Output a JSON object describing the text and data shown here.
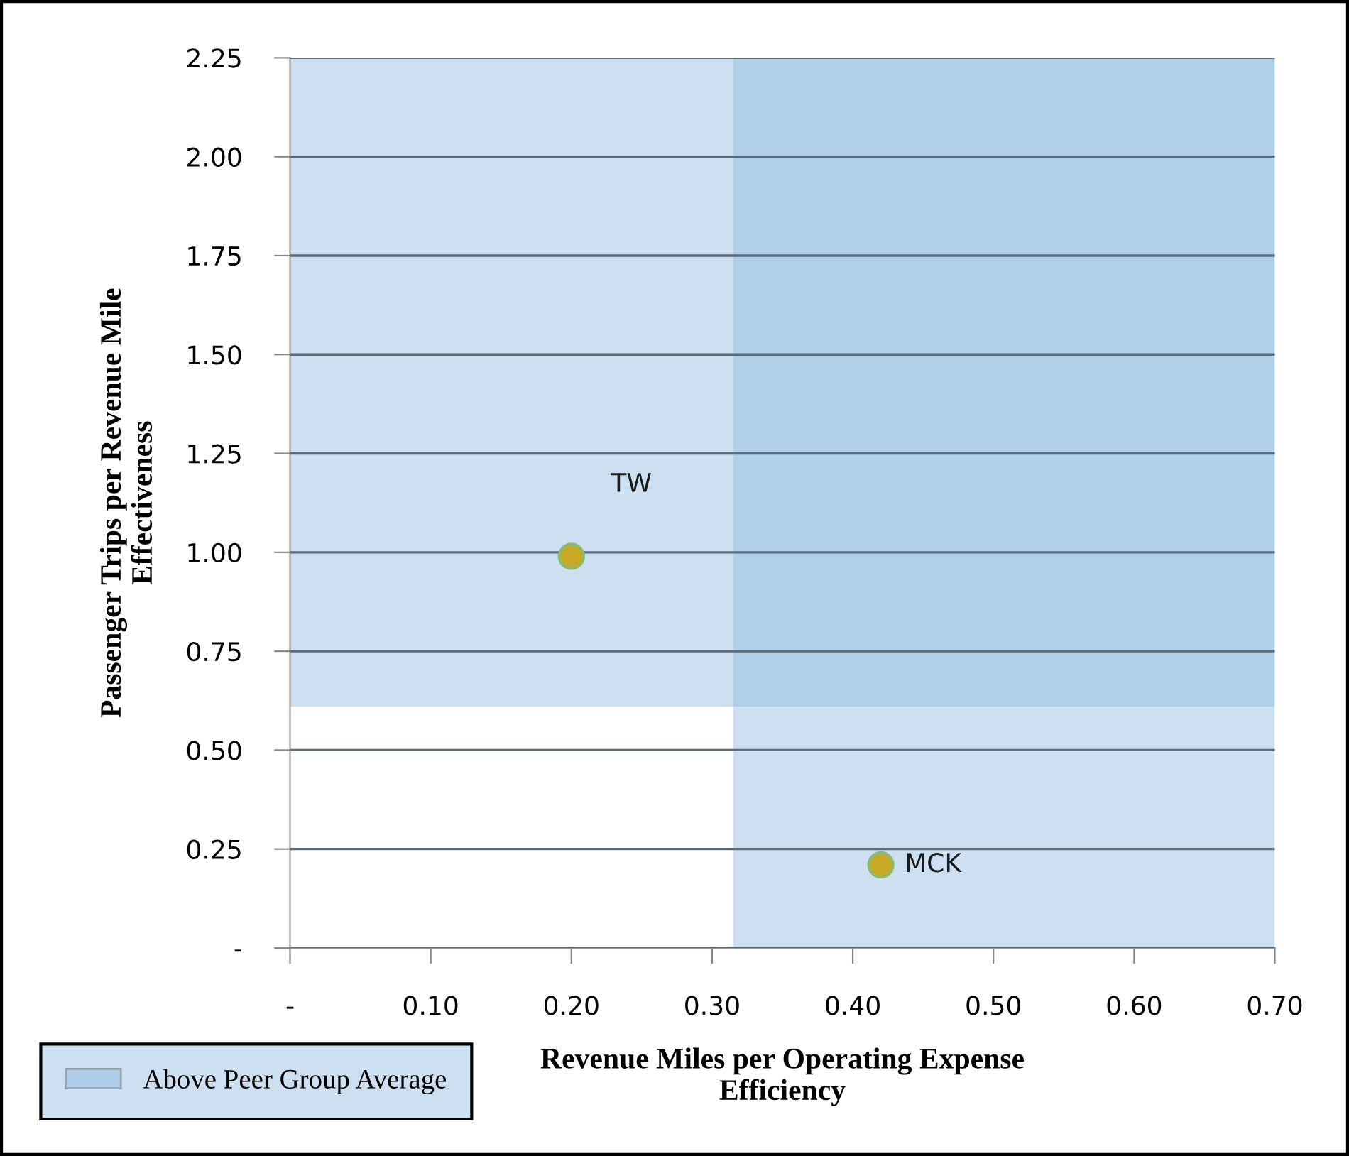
{
  "chart_data": {
    "type": "scatter",
    "xlabel": "Revenue Miles per Operating Expense\nEfficiency",
    "ylabel": "Passenger Trips per Revenue Mile\nEffectiveness",
    "series": [
      {
        "name": "TW",
        "color": "#c9a825",
        "x": [
          0.2
        ],
        "values": [
          0.99
        ]
      },
      {
        "name": "MCK",
        "color": "#c9a825",
        "x": [
          0.42
        ],
        "values": [
          0.21
        ]
      }
    ],
    "xlim": [
      0,
      0.7
    ],
    "xticks": [
      {
        "value": 0,
        "label": "-"
      },
      {
        "value": 0.1,
        "label": "0.10"
      },
      {
        "value": 0.2,
        "label": "0.20"
      },
      {
        "value": 0.3,
        "label": "0.30"
      },
      {
        "value": 0.4,
        "label": "0.40"
      },
      {
        "value": 0.5,
        "label": "0.50"
      },
      {
        "value": 0.6,
        "label": "0.60"
      },
      {
        "value": 0.7,
        "label": "0.70"
      }
    ],
    "ylim": [
      0,
      2.25
    ],
    "yticks": [
      {
        "value": 0,
        "label": "-"
      },
      {
        "value": 0.25,
        "label": "0.25"
      },
      {
        "value": 0.5,
        "label": "0.50"
      },
      {
        "value": 0.75,
        "label": "0.75"
      },
      {
        "value": 1.0,
        "label": "1.00"
      },
      {
        "value": 1.25,
        "label": "1.25"
      },
      {
        "value": 1.5,
        "label": "1.50"
      },
      {
        "value": 1.75,
        "label": "1.75"
      },
      {
        "value": 2.0,
        "label": "2.00"
      },
      {
        "value": 2.25,
        "label": "2.25"
      }
    ],
    "bands": [
      {
        "axis": "x",
        "from": 0.315,
        "to": 0.7,
        "label": "Above Peer Group Average",
        "color": "#8ebae0"
      },
      {
        "axis": "y",
        "from": 0.61,
        "to": 2.25,
        "color": "#8ebae0"
      }
    ],
    "grid": "y",
    "marker": "circle",
    "legend": "bottom left"
  }
}
